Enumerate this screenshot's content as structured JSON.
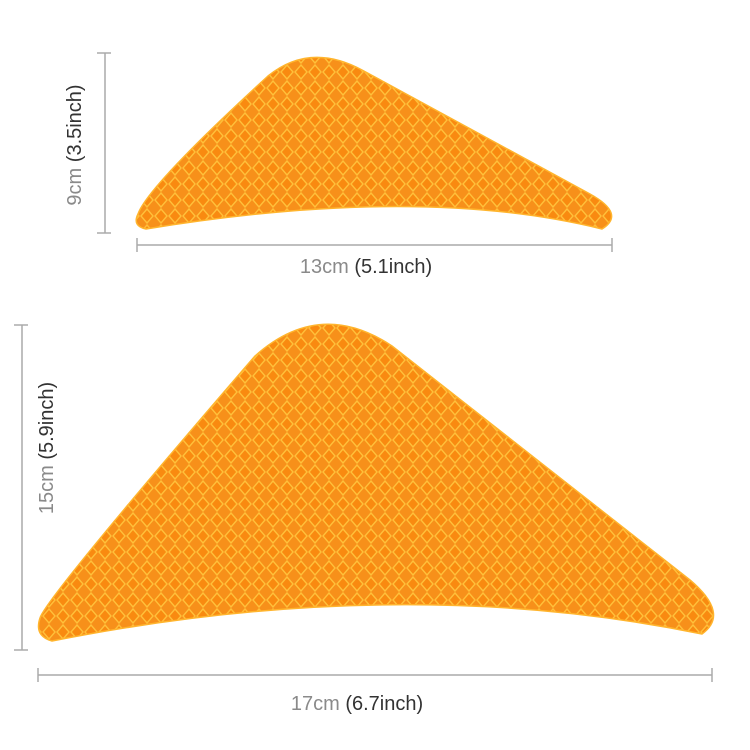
{
  "items": [
    {
      "height": {
        "cm": "9cm",
        "inch": "(3.5inch)"
      },
      "width": {
        "cm": "13cm",
        "inch": "(5.1inch)"
      }
    },
    {
      "height": {
        "cm": "15cm",
        "inch": "(5.9inch)"
      },
      "width": {
        "cm": "17cm",
        "inch": "(6.7inch)"
      }
    }
  ]
}
